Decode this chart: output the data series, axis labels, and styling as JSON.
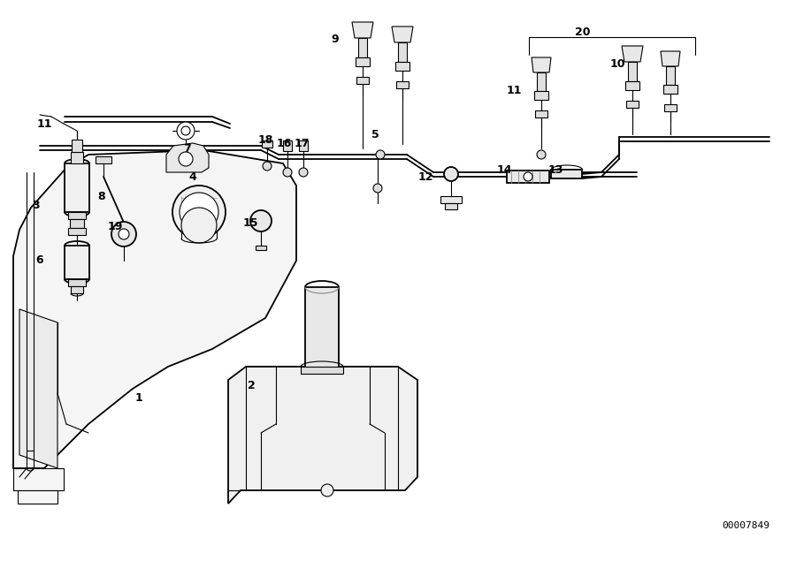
{
  "background_color": "#ffffff",
  "lc": "#000000",
  "lw_main": 1.3,
  "lw_thin": 0.8,
  "lw_thick": 1.8,
  "diagram_id": "00007849",
  "labels": [
    [
      "11",
      55,
      152
    ],
    [
      "3",
      42,
      232
    ],
    [
      "8",
      118,
      222
    ],
    [
      "19",
      136,
      255
    ],
    [
      "6",
      47,
      293
    ],
    [
      "1",
      152,
      450
    ],
    [
      "2",
      282,
      435
    ],
    [
      "4",
      218,
      197
    ],
    [
      "7",
      210,
      170
    ],
    [
      "15",
      298,
      255
    ],
    [
      "18",
      305,
      157
    ],
    [
      "16",
      328,
      167
    ],
    [
      "17",
      355,
      167
    ],
    [
      "5",
      423,
      153
    ],
    [
      "9",
      378,
      43
    ],
    [
      "12",
      476,
      200
    ],
    [
      "14",
      567,
      193
    ],
    [
      "13",
      622,
      193
    ],
    [
      "11",
      578,
      105
    ],
    [
      "10",
      697,
      75
    ],
    [
      "20",
      654,
      38
    ]
  ]
}
